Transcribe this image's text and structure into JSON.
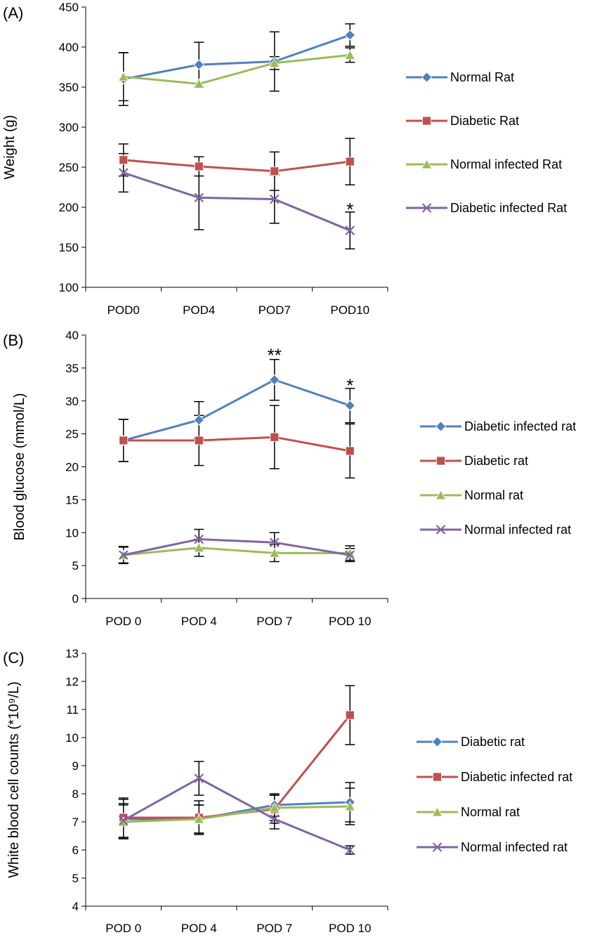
{
  "chart_data": [
    {
      "type": "line",
      "panel_label": "(A)",
      "title": "",
      "xlabel": "",
      "ylabel": "Weight (g)",
      "ylim": [
        100,
        450
      ],
      "yticks": [
        100,
        150,
        200,
        250,
        300,
        350,
        400,
        450
      ],
      "categories": [
        "POD0",
        "POD4",
        "POD7",
        "POD10"
      ],
      "legend_position": "right",
      "series": [
        {
          "name": "Normal Rat",
          "color": "#4f81bd",
          "marker": "diamond",
          "values": [
            360,
            378,
            382,
            415
          ],
          "errors": [
            33,
            28,
            37,
            14
          ]
        },
        {
          "name": "Diabetic Rat",
          "color": "#c0504d",
          "marker": "square",
          "values": [
            259,
            251,
            245,
            257
          ],
          "errors": [
            20,
            12,
            24,
            29
          ]
        },
        {
          "name": "Normal infected Rat",
          "color": "#9bbb59",
          "marker": "triangle",
          "values": [
            363,
            354,
            380,
            390
          ],
          "errors": [
            30,
            0,
            8,
            9
          ]
        },
        {
          "name": "Diabetic infected Rat",
          "color": "#8064a2",
          "marker": "x",
          "values": [
            243,
            212,
            210,
            171
          ],
          "errors": [
            24,
            40,
            30,
            23
          ]
        }
      ],
      "annotations": [
        {
          "text": "*",
          "category": "POD10",
          "y": 200
        }
      ]
    },
    {
      "type": "line",
      "panel_label": "(B)",
      "title": "",
      "xlabel": "",
      "ylabel": "Blood glucose (mmol/L)",
      "ylim": [
        0,
        40
      ],
      "yticks": [
        0,
        5,
        10,
        15,
        20,
        25,
        30,
        35,
        40
      ],
      "categories": [
        "POD 0",
        "POD 4",
        "POD 7",
        "POD 10"
      ],
      "legend_position": "right",
      "series": [
        {
          "name": "Diabetic infected rat",
          "color": "#4f81bd",
          "marker": "diamond",
          "values": [
            24,
            27.1,
            33.2,
            29.3
          ],
          "errors": [
            3.2,
            2.8,
            3.1,
            2.6
          ]
        },
        {
          "name": "Diabetic rat",
          "color": "#c0504d",
          "marker": "square",
          "values": [
            24,
            24,
            24.5,
            22.4
          ],
          "errors": [
            3.2,
            3.8,
            4.8,
            4.1
          ]
        },
        {
          "name": "Normal rat",
          "color": "#9bbb59",
          "marker": "triangle",
          "values": [
            6.6,
            7.7,
            6.9,
            6.9
          ],
          "errors": [
            1.3,
            1.3,
            1.3,
            1.1
          ]
        },
        {
          "name": "Normal infected rat",
          "color": "#8064a2",
          "marker": "x",
          "values": [
            6.6,
            9,
            8.5,
            6.6
          ],
          "errors": [
            1.2,
            1.5,
            1.5,
            1
          ]
        }
      ],
      "annotations": [
        {
          "text": "**",
          "category": "POD 7",
          "y": 37.3
        },
        {
          "text": "*",
          "category": "POD 10",
          "y": 32.7
        }
      ]
    },
    {
      "type": "line",
      "panel_label": "(C)",
      "title": "",
      "xlabel": "",
      "ylabel": "White blood cell counts (*10⁹/L)",
      "ylim": [
        4,
        13
      ],
      "yticks": [
        4,
        5,
        6,
        7,
        8,
        9,
        10,
        11,
        12,
        13
      ],
      "categories": [
        "POD 0",
        "POD 4",
        "POD 7",
        "POD 10"
      ],
      "legend_position": "right",
      "series": [
        {
          "name": "Diabetic rat",
          "color": "#4f81bd",
          "marker": "diamond",
          "values": [
            7.1,
            7.1,
            7.6,
            7.7
          ],
          "errors": [
            0.7,
            0.5,
            0.4,
            0.7
          ]
        },
        {
          "name": "Diabetic infected rat",
          "color": "#c0504d",
          "marker": "square",
          "values": [
            7.15,
            7.15,
            7.45,
            10.8
          ],
          "errors": [
            0.7,
            0.6,
            0.5,
            1.05
          ]
        },
        {
          "name": "Normal rat",
          "color": "#9bbb59",
          "marker": "triangle",
          "values": [
            7,
            7.1,
            7.5,
            7.55
          ],
          "errors": [
            0.6,
            0.5,
            0.45,
            0.65
          ]
        },
        {
          "name": "Normal infected rat",
          "color": "#8064a2",
          "marker": "x",
          "values": [
            7.05,
            8.55,
            7.1,
            6
          ],
          "errors": [
            0.6,
            0.6,
            0.35,
            0.15
          ]
        }
      ],
      "annotations": []
    }
  ]
}
